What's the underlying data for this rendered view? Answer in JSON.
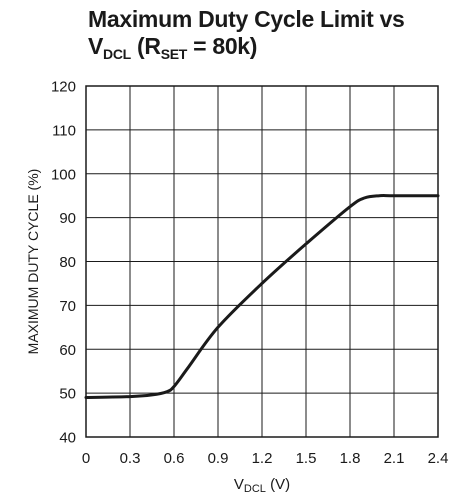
{
  "chart_data": {
    "type": "line",
    "title": {
      "line1": "Maximum Duty Cycle Limit vs",
      "v": "V",
      "v_sub": "DCL",
      "mid": " (R",
      "r_sub": "SET",
      "end": " = 80k)"
    },
    "ylabel": "MAXIMUM DUTY CYCLE (%)",
    "xlabel": {
      "v": "V",
      "sub": "DCL",
      "unit": " (V)"
    },
    "xlim": [
      0,
      2.4
    ],
    "ylim": [
      40,
      120
    ],
    "x_ticks": [
      "0",
      "0.3",
      "0.6",
      "0.9",
      "1.2",
      "1.5",
      "1.8",
      "2.1",
      "2.4"
    ],
    "y_ticks": [
      "40",
      "50",
      "60",
      "70",
      "80",
      "90",
      "100",
      "110",
      "120"
    ],
    "grid": true,
    "series": [
      {
        "x": [
          0,
          0.3,
          0.45,
          0.55,
          0.6,
          0.7,
          0.9,
          1.2,
          1.5,
          1.8,
          1.9,
          2.0,
          2.1,
          2.4
        ],
        "y": [
          49,
          49.2,
          49.6,
          50.3,
          51.5,
          56,
          65,
          75,
          84,
          92.5,
          94.5,
          95,
          95,
          95
        ]
      }
    ]
  }
}
